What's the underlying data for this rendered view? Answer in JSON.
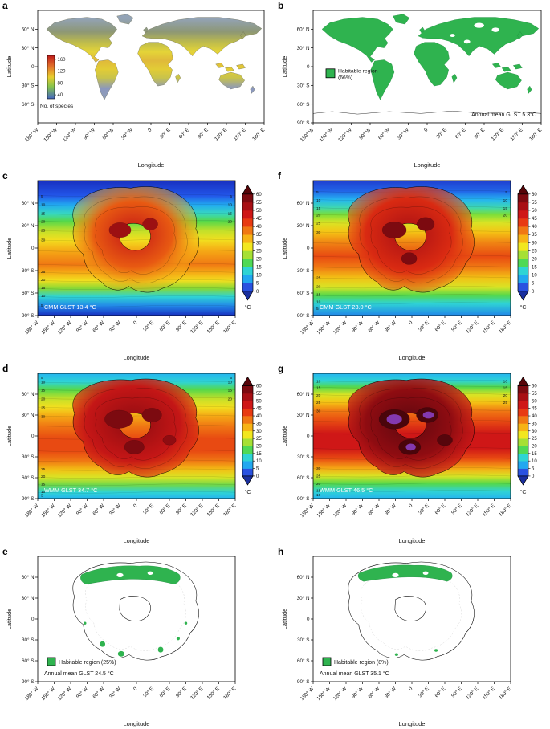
{
  "axes": {
    "x_label": "Longitude",
    "y_label": "Latitude",
    "lon_ticks": [
      "180° W",
      "150° W",
      "120° W",
      "90° W",
      "60° W",
      "30° W",
      "0",
      "30° E",
      "60° E",
      "90° E",
      "120° E",
      "150° E",
      "180° E"
    ],
    "lat_ticks_full": [
      "60° N",
      "30° N",
      "0",
      "30° S",
      "60° S",
      "90° S"
    ],
    "lat_ticks_short": [
      "60° N",
      "30° N",
      "0",
      "30° S",
      "60° S"
    ]
  },
  "temp_colorbar": {
    "unit": "°C",
    "ticks": [
      "60",
      "55",
      "50",
      "45",
      "40",
      "35",
      "30",
      "25",
      "20",
      "15",
      "10",
      "5",
      "0"
    ]
  },
  "colors": {
    "habitable_green": "#2fb34f",
    "temp_scale": [
      "#2a52e0",
      "#22a8f0",
      "#2fd4d4",
      "#4fd955",
      "#a6e034",
      "#f2e71f",
      "#f7b315",
      "#f07813",
      "#e83a12",
      "#cf1717",
      "#a80f14",
      "#7c0a10"
    ],
    "temp_below_scale": "#1a2f9e",
    "temp_above_scale": "#560408",
    "extreme_purple": "#8a3fc0"
  },
  "chart_data": [
    {
      "panel": "a",
      "type": "heatmap",
      "colorbar_label": "No. of species",
      "colorbar_ticks": [
        "160",
        "120",
        "80",
        "40"
      ]
    },
    {
      "panel": "b",
      "type": "heatmap",
      "legend_line1": "Habitable region",
      "legend_line2": "(66%)",
      "habitable_percent": 66,
      "annotation": "Annual mean GLST 5.3°C",
      "annual_mean_glst_c": 5.3
    },
    {
      "panel": "c",
      "type": "heatmap",
      "annotation": "CMM GLST 13.4 °C",
      "cmm_glst_c": 13.4,
      "contour_labels": [
        "5",
        "10",
        "15",
        "20",
        "25",
        "30"
      ]
    },
    {
      "panel": "d",
      "type": "heatmap",
      "annotation": "WMM GLST 34.7 °C",
      "wmm_glst_c": 34.7,
      "contour_labels": [
        "5",
        "10",
        "15",
        "20",
        "25",
        "30"
      ]
    },
    {
      "panel": "e",
      "type": "heatmap",
      "legend": "Habitable region (25%)",
      "habitable_percent": 25,
      "annotation": "Annual mean GLST 24.5 °C",
      "annual_mean_glst_c": 24.5
    },
    {
      "panel": "f",
      "type": "heatmap",
      "annotation": "CMM GLST 23.0 °C",
      "cmm_glst_c": 23.0,
      "contour_labels": [
        "5",
        "10",
        "15",
        "20",
        "25",
        "30"
      ]
    },
    {
      "panel": "g",
      "type": "heatmap",
      "annotation": "WMM GLST 46.5 °C",
      "wmm_glst_c": 46.5,
      "contour_labels": [
        "10",
        "15",
        "20",
        "25",
        "30"
      ]
    },
    {
      "panel": "h",
      "type": "heatmap",
      "legend": "Habitable region (8%)",
      "habitable_percent": 8,
      "annotation": "Annual mean GLST 35.1 °C",
      "annual_mean_glst_c": 35.1
    }
  ]
}
